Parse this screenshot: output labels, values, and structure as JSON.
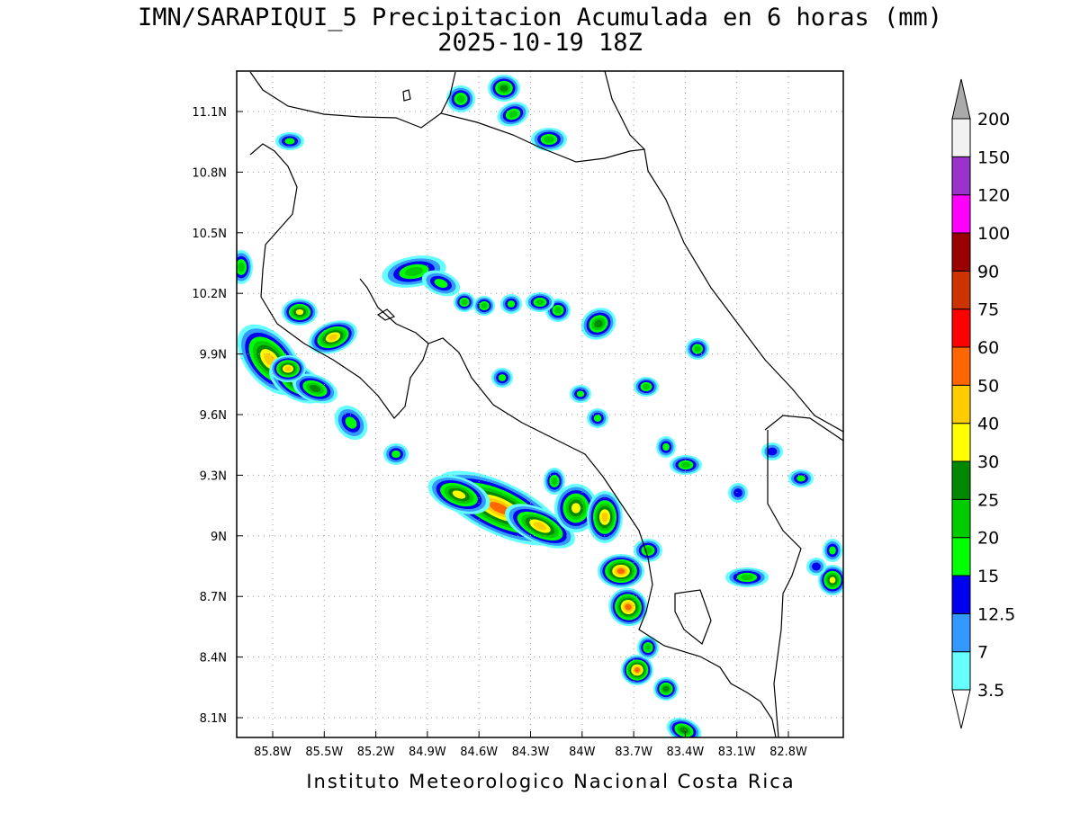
{
  "header": {
    "title": "IMN/SARAPIQUI_5 Precipitacion Acumulada en 6 horas (mm)",
    "subtitle": "2025-10-19 18Z"
  },
  "map": {
    "lon_ticks": [
      "85.8W",
      "85.5W",
      "85.2W",
      "84.9W",
      "84.6W",
      "84.3W",
      "84W",
      "83.7W",
      "83.4W",
      "83.1W",
      "82.8W"
    ],
    "lat_ticks": [
      "11.1N",
      "10.8N",
      "10.5N",
      "10.2N",
      "9.9N",
      "9.6N",
      "9.3N",
      "9N",
      "8.7N",
      "8.4N",
      "8.1N"
    ]
  },
  "colorbar": {
    "labels": [
      "3.5",
      "7",
      "12.5",
      "15",
      "20",
      "25",
      "30",
      "40",
      "50",
      "60",
      "75",
      "90",
      "100",
      "120",
      "150",
      "200"
    ],
    "colors": [
      "#66ffff",
      "#3399ff",
      "#0000ee",
      "#00ff00",
      "#00cc00",
      "#008800",
      "#ffff00",
      "#ffcc00",
      "#ff6600",
      "#ff0000",
      "#cc3300",
      "#990000",
      "#ff00ff",
      "#9933cc",
      "#f2f2f2"
    ],
    "over_color": "#aaaaaa",
    "under_color": "#ffffff"
  },
  "footer": "Instituto Meteorologico Nacional Costa Rica"
}
